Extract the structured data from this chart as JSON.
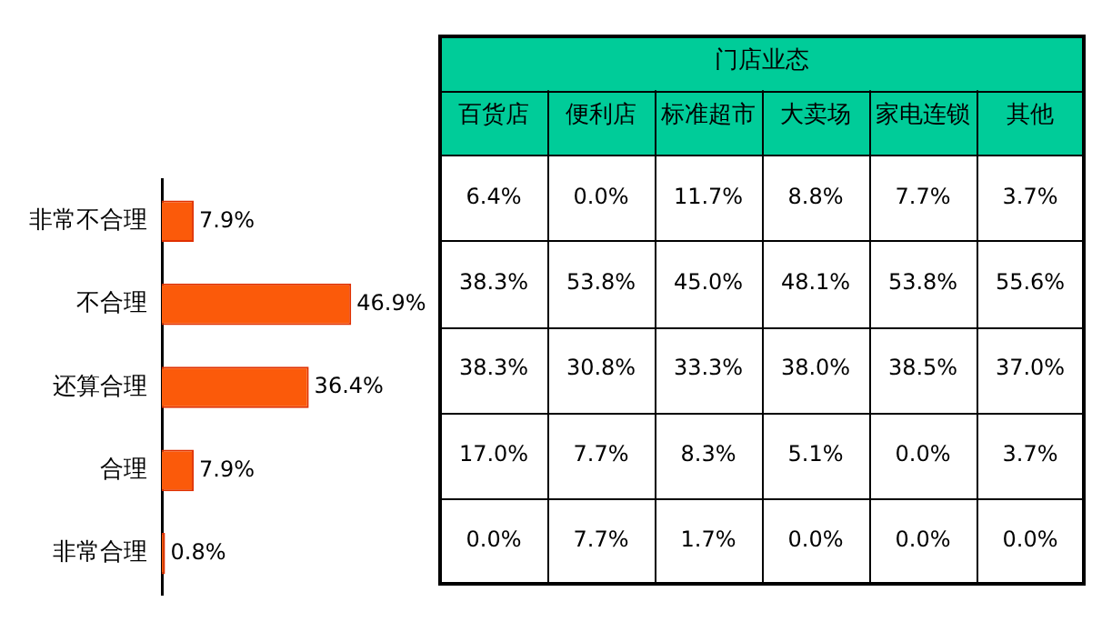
{
  "chart_data": [
    {
      "type": "bar",
      "orientation": "horizontal",
      "categories": [
        "非常不合理",
        "不合理",
        "还算合理",
        "合理",
        "非常合理"
      ],
      "values": [
        7.9,
        46.9,
        36.4,
        7.9,
        0.8
      ],
      "color": "#fb5a0a",
      "value_labels": [
        "7.9%",
        "46.9%",
        "36.4%",
        "7.9%",
        "0.8%"
      ],
      "tick_labels": "y",
      "grid": false,
      "legend": false
    },
    {
      "type": "other",
      "title": "门店业态",
      "categories": [
        "百货店",
        "便利店",
        "标准超市",
        "大卖场",
        "家电连锁",
        "其他"
      ],
      "cell_labels": [
        [
          "6.4%",
          "0.0%",
          "11.7%",
          "8.8%",
          "7.7%",
          "3.7%"
        ],
        [
          "38.3%",
          "53.8%",
          "45.0%",
          "48.1%",
          "53.8%",
          "55.6%"
        ],
        [
          "38.3%",
          "30.8%",
          "33.3%",
          "38.0%",
          "38.5%",
          "37.0%"
        ],
        [
          "17.0%",
          "7.7%",
          "8.3%",
          "5.1%",
          "0.0%",
          "3.7%"
        ],
        [
          "0.0%",
          "7.7%",
          "1.7%",
          "0.0%",
          "0.0%",
          "0.0%"
        ]
      ]
    }
  ]
}
